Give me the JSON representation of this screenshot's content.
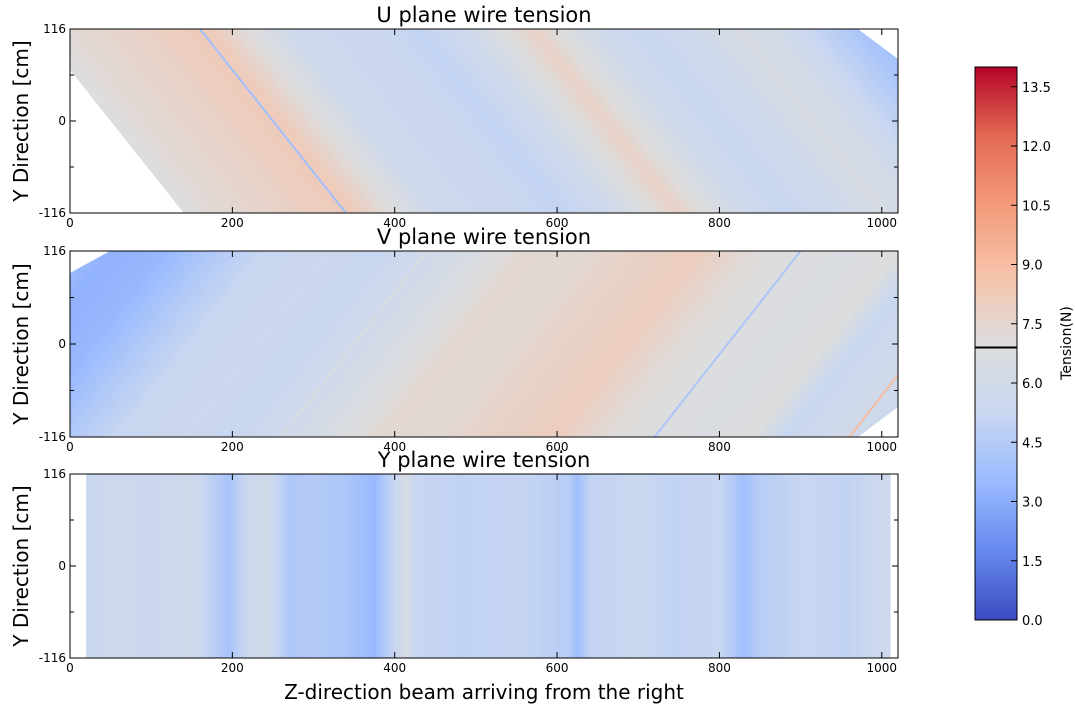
{
  "chart_data": [
    {
      "type": "heatmap",
      "title": "U plane wire tension",
      "ylabel": "Y Direction [cm]",
      "xlabel": "",
      "xlim": [
        0,
        1020
      ],
      "ylim": [
        -116,
        116
      ],
      "x_ticks": [
        "0",
        "200",
        "400",
        "600",
        "800",
        "1000"
      ],
      "y_ticks": [
        "116",
        "0",
        "-116"
      ],
      "grid": false,
      "wire_angle": "u",
      "tension_profile": [
        {
          "z": -40,
          "t": 6.9
        },
        {
          "z": 0,
          "t": 7.3
        },
        {
          "z": 60,
          "t": 7.6
        },
        {
          "z": 120,
          "t": 8.0
        },
        {
          "z": 170,
          "t": 8.2
        },
        {
          "z": 220,
          "t": 7.0
        },
        {
          "z": 270,
          "t": 5.7
        },
        {
          "z": 320,
          "t": 5.4
        },
        {
          "z": 380,
          "t": 5.3
        },
        {
          "z": 430,
          "t": 5.0
        },
        {
          "z": 480,
          "t": 5.6
        },
        {
          "z": 520,
          "t": 6.6
        },
        {
          "z": 570,
          "t": 7.8
        },
        {
          "z": 600,
          "t": 7.0
        },
        {
          "z": 650,
          "t": 5.8
        },
        {
          "z": 700,
          "t": 5.2
        },
        {
          "z": 760,
          "t": 5.6
        },
        {
          "z": 820,
          "t": 6.4
        },
        {
          "z": 870,
          "t": 6.0
        },
        {
          "z": 920,
          "t": 5.0
        },
        {
          "z": 980,
          "t": 4.0
        },
        {
          "z": 1040,
          "t": 3.6
        },
        {
          "z": 1100,
          "t": 4.5
        },
        {
          "z": 1150,
          "t": 7.2
        },
        {
          "z": 1200,
          "t": 7.6
        },
        {
          "z": 1300,
          "t": 7.0
        }
      ],
      "streaks": [
        {
          "z": 160,
          "t": 3.8
        }
      ]
    },
    {
      "type": "heatmap",
      "title": "V plane wire tension",
      "ylabel": "Y Direction [cm]",
      "xlabel": "",
      "xlim": [
        0,
        1020
      ],
      "ylim": [
        -116,
        116
      ],
      "x_ticks": [
        "0",
        "200",
        "400",
        "600",
        "800",
        "1000"
      ],
      "y_ticks": [
        "116",
        "0",
        "-116"
      ],
      "grid": false,
      "wire_angle": "v",
      "tension_profile": [
        {
          "z": -300,
          "t": 4.0
        },
        {
          "z": -200,
          "t": 4.0
        },
        {
          "z": -130,
          "t": 3.2
        },
        {
          "z": -60,
          "t": 3.4
        },
        {
          "z": 0,
          "t": 4.4
        },
        {
          "z": 60,
          "t": 5.2
        },
        {
          "z": 140,
          "t": 5.4
        },
        {
          "z": 200,
          "t": 5.2
        },
        {
          "z": 260,
          "t": 5.8
        },
        {
          "z": 320,
          "t": 6.5
        },
        {
          "z": 380,
          "t": 7.4
        },
        {
          "z": 450,
          "t": 7.3
        },
        {
          "z": 520,
          "t": 7.8
        },
        {
          "z": 600,
          "t": 8.0
        },
        {
          "z": 660,
          "t": 7.2
        },
        {
          "z": 700,
          "t": 7.0
        },
        {
          "z": 780,
          "t": 6.6
        },
        {
          "z": 840,
          "t": 7.0
        },
        {
          "z": 880,
          "t": 5.2
        },
        {
          "z": 940,
          "t": 5.8
        },
        {
          "z": 1000,
          "t": 5.6
        },
        {
          "z": 1100,
          "t": 6.0
        }
      ],
      "streaks": [
        {
          "z": 720,
          "t": 4.2
        },
        {
          "z": 260,
          "t": 6.8
        },
        {
          "z": 960,
          "t": 9.0
        }
      ]
    },
    {
      "type": "heatmap",
      "title": "Y plane wire tension",
      "ylabel": "Y Direction [cm]",
      "xlabel": "Z-direction beam arriving from the right",
      "xlim": [
        0,
        1020
      ],
      "ylim": [
        -116,
        116
      ],
      "x_ticks": [
        "0",
        "200",
        "400",
        "600",
        "800",
        "1000"
      ],
      "y_ticks": [
        "116",
        "0",
        "-116"
      ],
      "grid": false,
      "wire_angle": "vertical",
      "wire_z_range": [
        20,
        1010
      ],
      "tension_profile": [
        {
          "z": 20,
          "t": 5.2
        },
        {
          "z": 60,
          "t": 5.6
        },
        {
          "z": 100,
          "t": 5.3
        },
        {
          "z": 150,
          "t": 5.8
        },
        {
          "z": 195,
          "t": 4.0
        },
        {
          "z": 215,
          "t": 5.2
        },
        {
          "z": 240,
          "t": 6.0
        },
        {
          "z": 270,
          "t": 4.3
        },
        {
          "z": 300,
          "t": 4.5
        },
        {
          "z": 340,
          "t": 4.2
        },
        {
          "z": 375,
          "t": 3.4
        },
        {
          "z": 385,
          "t": 4.2
        },
        {
          "z": 405,
          "t": 5.6
        },
        {
          "z": 415,
          "t": 6.5
        },
        {
          "z": 425,
          "t": 5.2
        },
        {
          "z": 480,
          "t": 5.0
        },
        {
          "z": 560,
          "t": 5.1
        },
        {
          "z": 615,
          "t": 4.6
        },
        {
          "z": 625,
          "t": 3.7
        },
        {
          "z": 640,
          "t": 5.0
        },
        {
          "z": 700,
          "t": 5.3
        },
        {
          "z": 740,
          "t": 5.0
        },
        {
          "z": 800,
          "t": 5.2
        },
        {
          "z": 830,
          "t": 3.8
        },
        {
          "z": 850,
          "t": 4.6
        },
        {
          "z": 900,
          "t": 5.2
        },
        {
          "z": 960,
          "t": 5.0
        },
        {
          "z": 1010,
          "t": 5.6
        }
      ],
      "streaks": []
    }
  ],
  "colorbar": {
    "label": "Tension(N)",
    "range": [
      0,
      14
    ],
    "ticks": [
      "0.0",
      "1.5",
      "3.0",
      "4.5",
      "6.0",
      "7.5",
      "9.0",
      "10.5",
      "12.0",
      "13.5"
    ],
    "marker_value": 6.9,
    "colormap": "coolwarm",
    "colors": [
      "#3b4cc0",
      "#6788ee",
      "#9abbff",
      "#c9d7f0",
      "#dddddd",
      "#f6c2aa",
      "#f49a7b",
      "#e36a53",
      "#b40426"
    ]
  }
}
